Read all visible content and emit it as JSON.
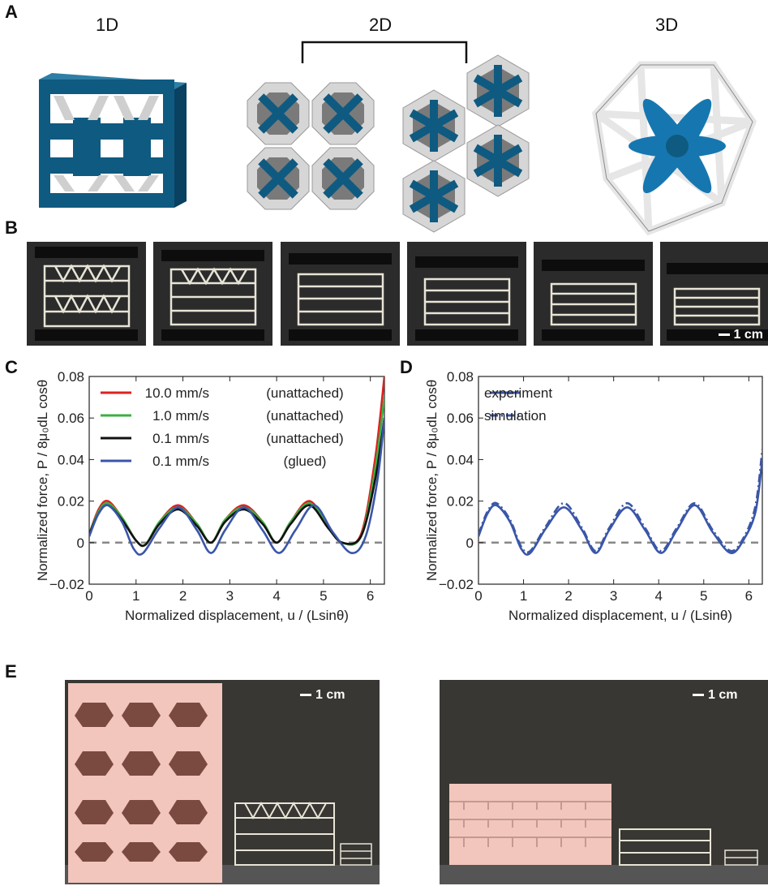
{
  "panels": {
    "a": {
      "letter": "A",
      "labels": [
        "1D",
        "2D",
        "3D"
      ]
    },
    "b": {
      "letter": "B",
      "scale": "1 cm"
    },
    "c": {
      "letter": "C"
    },
    "d": {
      "letter": "D"
    },
    "e": {
      "letter": "E",
      "scale_left": "1 cm",
      "scale_right": "1 cm"
    }
  },
  "colors": {
    "blue": "#0f5a80",
    "gray": "#cfcfcf",
    "pink": "#f2c6bc"
  },
  "chart_data": [
    {
      "type": "line",
      "panel": "C",
      "xlabel": "Normalized displacement, u / (Lsinθ)",
      "ylabel": "Normalized force, P / 8μ₀dL cosθ",
      "xlim": [
        0,
        6.3
      ],
      "ylim": [
        -0.02,
        0.08
      ],
      "xticks": [
        "0",
        "1",
        "2",
        "3",
        "4",
        "5",
        "6"
      ],
      "yticks": [
        "−0.02",
        "0",
        "0.02",
        "0.04",
        "0.06",
        "0.08"
      ],
      "reference_line": 0,
      "legend": "top-left",
      "series": [
        {
          "name": "10.0 mm/s",
          "tag": "(unattached)",
          "color": "#e02020",
          "x": [
            0,
            0.2,
            0.4,
            0.7,
            1.0,
            1.2,
            1.5,
            1.9,
            2.3,
            2.6,
            2.9,
            3.3,
            3.7,
            4.0,
            4.3,
            4.7,
            5.1,
            5.4,
            5.8,
            6.1,
            6.3
          ],
          "y": [
            0.004,
            0.016,
            0.02,
            0.012,
            0.001,
            -0.001,
            0.01,
            0.018,
            0.009,
            0,
            0.011,
            0.018,
            0.01,
            0,
            0.01,
            0.02,
            0.008,
            0,
            0.004,
            0.04,
            0.08
          ]
        },
        {
          "name": "1.0 mm/s",
          "tag": "(unattached)",
          "color": "#3cb043",
          "x": [
            0,
            0.2,
            0.4,
            0.7,
            1.0,
            1.2,
            1.5,
            1.9,
            2.3,
            2.6,
            2.9,
            3.3,
            3.7,
            4.0,
            4.3,
            4.7,
            5.1,
            5.4,
            5.8,
            6.1,
            6.3
          ],
          "y": [
            0.004,
            0.015,
            0.019,
            0.012,
            0.001,
            -0.001,
            0.01,
            0.017,
            0.009,
            0,
            0.011,
            0.017,
            0.01,
            0,
            0.01,
            0.019,
            0.008,
            0,
            0.003,
            0.035,
            0.07
          ]
        },
        {
          "name": "0.1 mm/s",
          "tag": "(unattached)",
          "color": "#111111",
          "x": [
            0,
            0.2,
            0.4,
            0.7,
            1.0,
            1.2,
            1.5,
            1.9,
            2.3,
            2.6,
            2.9,
            3.3,
            3.7,
            4.0,
            4.3,
            4.7,
            5.1,
            5.4,
            5.8,
            6.1,
            6.3
          ],
          "y": [
            0.004,
            0.014,
            0.018,
            0.011,
            0.001,
            -0.001,
            0.009,
            0.016,
            0.008,
            0,
            0.01,
            0.016,
            0.009,
            0,
            0.009,
            0.018,
            0.007,
            0,
            0.003,
            0.03,
            0.06
          ]
        },
        {
          "name": "0.1 mm/s",
          "tag": "(glued)",
          "color": "#3a56a8",
          "x": [
            0,
            0.2,
            0.4,
            0.7,
            0.95,
            1.15,
            1.5,
            1.9,
            2.3,
            2.6,
            2.9,
            3.3,
            3.7,
            4.05,
            4.4,
            4.8,
            5.2,
            5.6,
            5.9,
            6.15,
            6.3
          ],
          "y": [
            0.003,
            0.014,
            0.018,
            0.01,
            -0.003,
            -0.005,
            0.007,
            0.017,
            0.006,
            -0.005,
            0.006,
            0.017,
            0.006,
            -0.005,
            0.006,
            0.018,
            0.005,
            -0.005,
            0.003,
            0.03,
            0.06
          ]
        }
      ]
    },
    {
      "type": "line",
      "panel": "D",
      "xlabel": "Normalized displacement, u / (Lsinθ)",
      "ylabel": "Normalized force, P / 8μ₀dL cosθ",
      "xlim": [
        0,
        6.3
      ],
      "ylim": [
        -0.02,
        0.08
      ],
      "xticks": [
        "0",
        "1",
        "2",
        "3",
        "4",
        "5",
        "6"
      ],
      "yticks": [
        "−0.02",
        "0",
        "0.02",
        "0.04",
        "0.06",
        "0.08"
      ],
      "reference_line": 0,
      "legend": "top-left",
      "series": [
        {
          "name": "experiment",
          "color": "#3a56a8",
          "style": "solid",
          "x": [
            0,
            0.2,
            0.4,
            0.7,
            0.95,
            1.15,
            1.5,
            1.9,
            2.3,
            2.6,
            2.9,
            3.3,
            3.7,
            4.05,
            4.4,
            4.8,
            5.2,
            5.6,
            5.9,
            6.15,
            6.3
          ],
          "y": [
            0.003,
            0.014,
            0.018,
            0.01,
            -0.003,
            -0.005,
            0.007,
            0.017,
            0.006,
            -0.005,
            0.006,
            0.017,
            0.006,
            -0.005,
            0.006,
            0.018,
            0.005,
            -0.005,
            0.002,
            0.015,
            0.04
          ]
        },
        {
          "name": "simulation",
          "color": "#3a56a8",
          "style": "dashdot",
          "x": [
            0,
            0.2,
            0.4,
            0.7,
            0.95,
            1.15,
            1.5,
            1.9,
            2.3,
            2.6,
            2.9,
            3.3,
            3.7,
            4.05,
            4.4,
            4.8,
            5.2,
            5.6,
            5.9,
            6.15,
            6.3
          ],
          "y": [
            0.004,
            0.015,
            0.019,
            0.011,
            -0.002,
            -0.004,
            0.008,
            0.019,
            0.007,
            -0.004,
            0.007,
            0.019,
            0.007,
            -0.004,
            0.007,
            0.019,
            0.006,
            -0.004,
            0.003,
            0.018,
            0.045
          ]
        }
      ]
    }
  ]
}
